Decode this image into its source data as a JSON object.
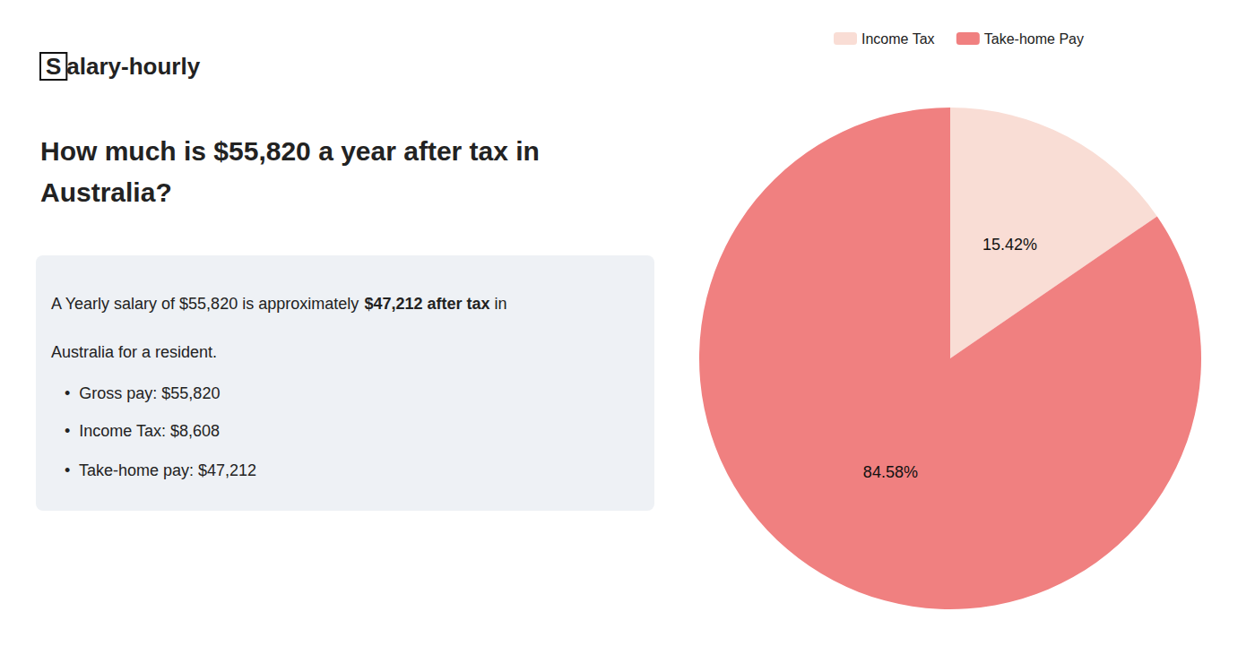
{
  "chart_data": {
    "type": "pie",
    "title": "How much is $55,820 a year after tax in\nAustralia?",
    "categories": [
      "Income Tax",
      "Take-home Pay"
    ],
    "values": [
      15.42,
      84.58
    ],
    "value_labels": [
      "15.42%",
      "84.58%"
    ],
    "colors": [
      "#f9ddd5",
      "#f08080"
    ],
    "data_labels": true,
    "legend": "top",
    "annotations": [
      [
        "S",
        "alary-hourly"
      ],
      [
        "A Yearly salary of $55,820 is approximately ",
        "$47,212 after tax",
        " in"
      ],
      [
        "Australia for a resident."
      ],
      [
        "•  Gross pay: $55,820"
      ],
      [
        "•  Income Tax: $8,608"
      ],
      [
        "•  Take-home pay: $47,212"
      ]
    ]
  }
}
